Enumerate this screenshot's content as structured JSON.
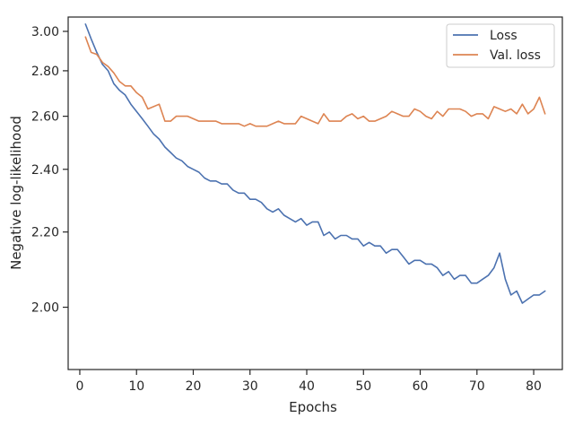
{
  "chart_data": {
    "type": "line",
    "title": "",
    "xlabel": "Epochs",
    "ylabel": "Negative log-likelihood",
    "xlim": [
      -2.05,
      85.05
    ],
    "ylim": [
      1.86,
      3.08
    ],
    "y_scale": "reciprocal",
    "xticks": [
      0,
      10,
      20,
      30,
      40,
      50,
      60,
      70,
      80
    ],
    "xtick_labels": [
      "0",
      "10",
      "20",
      "30",
      "40",
      "50",
      "60",
      "70",
      "80"
    ],
    "yticks": [
      2.0,
      2.2,
      2.4,
      2.6,
      2.8,
      3.0
    ],
    "ytick_labels": [
      "2.00",
      "2.20",
      "2.40",
      "2.60",
      "2.80",
      "3.00"
    ],
    "grid": false,
    "legend_position": "top-right",
    "x": [
      1,
      2,
      3,
      4,
      5,
      6,
      7,
      8,
      9,
      10,
      11,
      12,
      13,
      14,
      15,
      16,
      17,
      18,
      19,
      20,
      21,
      22,
      23,
      24,
      25,
      26,
      27,
      28,
      29,
      30,
      31,
      32,
      33,
      34,
      35,
      36,
      37,
      38,
      39,
      40,
      41,
      42,
      43,
      44,
      45,
      46,
      47,
      48,
      49,
      50,
      51,
      52,
      53,
      54,
      55,
      56,
      57,
      58,
      59,
      60,
      61,
      62,
      63,
      64,
      65,
      66,
      67,
      68,
      69,
      70,
      71,
      72,
      73,
      74,
      75,
      76,
      77,
      78,
      79,
      80,
      81,
      82
    ],
    "series": [
      {
        "name": "Loss",
        "color": "#4c72b0",
        "values": [
          3.04,
          2.96,
          2.89,
          2.83,
          2.8,
          2.74,
          2.71,
          2.69,
          2.65,
          2.62,
          2.59,
          2.56,
          2.53,
          2.51,
          2.48,
          2.46,
          2.44,
          2.43,
          2.41,
          2.4,
          2.39,
          2.37,
          2.36,
          2.36,
          2.35,
          2.35,
          2.33,
          2.32,
          2.32,
          2.3,
          2.3,
          2.29,
          2.27,
          2.26,
          2.27,
          2.25,
          2.24,
          2.23,
          2.24,
          2.22,
          2.23,
          2.23,
          2.19,
          2.2,
          2.18,
          2.19,
          2.19,
          2.18,
          2.18,
          2.16,
          2.17,
          2.16,
          2.16,
          2.14,
          2.15,
          2.15,
          2.13,
          2.11,
          2.12,
          2.12,
          2.11,
          2.11,
          2.1,
          2.08,
          2.09,
          2.07,
          2.08,
          2.08,
          2.06,
          2.06,
          2.07,
          2.08,
          2.1,
          2.14,
          2.07,
          2.03,
          2.04,
          2.01,
          2.02,
          2.03,
          2.03,
          2.04
        ]
      },
      {
        "name": "Val. loss",
        "color": "#dd8452",
        "values": [
          2.97,
          2.89,
          2.88,
          2.84,
          2.82,
          2.79,
          2.75,
          2.73,
          2.73,
          2.7,
          2.68,
          2.63,
          2.64,
          2.65,
          2.58,
          2.58,
          2.6,
          2.6,
          2.6,
          2.59,
          2.58,
          2.58,
          2.58,
          2.58,
          2.57,
          2.57,
          2.57,
          2.57,
          2.56,
          2.57,
          2.56,
          2.56,
          2.56,
          2.57,
          2.58,
          2.57,
          2.57,
          2.57,
          2.6,
          2.59,
          2.58,
          2.57,
          2.61,
          2.58,
          2.58,
          2.58,
          2.6,
          2.61,
          2.59,
          2.6,
          2.58,
          2.58,
          2.59,
          2.6,
          2.62,
          2.61,
          2.6,
          2.6,
          2.63,
          2.62,
          2.6,
          2.59,
          2.62,
          2.6,
          2.63,
          2.63,
          2.63,
          2.62,
          2.6,
          2.61,
          2.61,
          2.59,
          2.64,
          2.63,
          2.62,
          2.63,
          2.61,
          2.65,
          2.61,
          2.63,
          2.68,
          2.61
        ]
      }
    ]
  }
}
